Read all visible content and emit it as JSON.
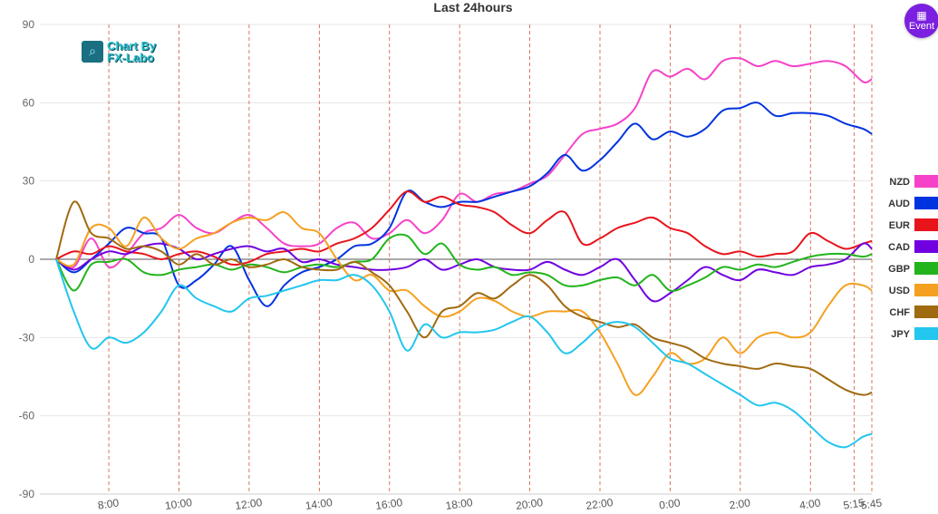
{
  "logo": {
    "line1": "Chart By",
    "line2": "FX-Labo",
    "icon": "chart-magnifier-icon"
  },
  "event_button": {
    "label": "Event",
    "icon": "calendar-icon",
    "color": "#7b1fe0"
  },
  "chart_data": {
    "type": "line",
    "title": "Last 24hours",
    "ylim": [
      -90,
      90
    ],
    "yticks": [
      90,
      60,
      30,
      0,
      -30,
      -60,
      -90
    ],
    "xlim": [
      6.5,
      29.75
    ],
    "xticks": [
      {
        "t": 8,
        "label": "8:00"
      },
      {
        "t": 10,
        "label": "10:00"
      },
      {
        "t": 12,
        "label": "12:00"
      },
      {
        "t": 14,
        "label": "14:00"
      },
      {
        "t": 16,
        "label": "16:00"
      },
      {
        "t": 18,
        "label": "18:00"
      },
      {
        "t": 20,
        "label": "20:00"
      },
      {
        "t": 22,
        "label": "22:00"
      },
      {
        "t": 24,
        "label": "0:00"
      },
      {
        "t": 26,
        "label": "2:00"
      },
      {
        "t": 28,
        "label": "4:00"
      },
      {
        "t": 29.25,
        "label": "5:15"
      },
      {
        "t": 29.75,
        "label": "5:45"
      }
    ],
    "grid": true,
    "legend": "right",
    "x": [
      6.5,
      7,
      7.5,
      8,
      8.5,
      9,
      9.5,
      10,
      10.5,
      11,
      11.5,
      12,
      12.5,
      13,
      13.5,
      14,
      14.5,
      15,
      15.5,
      16,
      16.5,
      17,
      17.5,
      18,
      18.5,
      19,
      19.5,
      20,
      20.5,
      21,
      21.5,
      22,
      22.5,
      23,
      23.5,
      24,
      24.5,
      25,
      25.5,
      26,
      26.5,
      27,
      27.5,
      28,
      28.5,
      29,
      29.5,
      29.75
    ],
    "series": [
      {
        "name": "NZD",
        "color": "#f542c8",
        "values": [
          0,
          -3,
          8,
          -3,
          2,
          10,
          12,
          17,
          12,
          10,
          14,
          17,
          12,
          6,
          5,
          6,
          12,
          14,
          8,
          10,
          15,
          10,
          15,
          25,
          22,
          25,
          26,
          29,
          32,
          40,
          48,
          50,
          52,
          58,
          72,
          70,
          73,
          69,
          76,
          77,
          74,
          76,
          74,
          75,
          76,
          74,
          68,
          69
        ]
      },
      {
        "name": "AUD",
        "color": "#0033e0",
        "values": [
          0,
          -5,
          0,
          6,
          12,
          10,
          8,
          -10,
          -8,
          -2,
          5,
          -8,
          -18,
          -10,
          -5,
          -3,
          0,
          5,
          6,
          12,
          26,
          22,
          20,
          22,
          22,
          24,
          26,
          28,
          33,
          40,
          34,
          38,
          45,
          52,
          46,
          49,
          47,
          50,
          57,
          58,
          60,
          55,
          56,
          56,
          55,
          52,
          50,
          48
        ]
      },
      {
        "name": "EUR",
        "color": "#e8141c",
        "values": [
          0,
          3,
          2,
          5,
          3,
          2,
          0,
          2,
          3,
          1,
          -2,
          -1,
          2,
          3,
          4,
          3,
          6,
          8,
          12,
          19,
          26,
          22,
          24,
          21,
          20,
          18,
          13,
          10,
          15,
          18,
          6,
          8,
          12,
          14,
          16,
          12,
          10,
          5,
          2,
          3,
          1,
          2,
          3,
          10,
          7,
          4,
          6,
          7
        ]
      },
      {
        "name": "CAD",
        "color": "#7000e0",
        "values": [
          0,
          -4,
          0,
          3,
          2,
          5,
          6,
          4,
          0,
          2,
          4,
          5,
          3,
          4,
          -1,
          0,
          -2,
          -3,
          -4,
          -4,
          -3,
          0,
          -4,
          -2,
          0,
          -3,
          -4,
          -4,
          -1,
          -4,
          -6,
          -3,
          0,
          -8,
          -16,
          -13,
          -8,
          -3,
          -6,
          -8,
          -4,
          -5,
          -6,
          -3,
          -2,
          0,
          6,
          4
        ]
      },
      {
        "name": "GBP",
        "color": "#22b41c",
        "values": [
          0,
          -12,
          -2,
          -1,
          0,
          -5,
          -6,
          -4,
          -3,
          -2,
          -4,
          -2,
          -3,
          -5,
          -3,
          -2,
          -3,
          -1,
          0,
          8,
          9,
          2,
          6,
          -2,
          -4,
          -3,
          -6,
          -5,
          -6,
          -10,
          -10,
          -8,
          -7,
          -10,
          -6,
          -12,
          -10,
          -7,
          -3,
          -4,
          -2,
          -3,
          -1,
          1,
          2,
          2,
          1,
          2
        ]
      },
      {
        "name": "USD",
        "color": "#f5a020",
        "values": [
          0,
          -2,
          12,
          12,
          5,
          16,
          8,
          4,
          8,
          10,
          14,
          16,
          15,
          18,
          12,
          10,
          0,
          -8,
          -6,
          -12,
          -12,
          -18,
          -22,
          -20,
          -15,
          -16,
          -20,
          -22,
          -20,
          -20,
          -20,
          -28,
          -40,
          -52,
          -45,
          -36,
          -40,
          -38,
          -30,
          -36,
          -30,
          -28,
          -30,
          -28,
          -18,
          -10,
          -10,
          -12
        ]
      },
      {
        "name": "CHF",
        "color": "#a06a10",
        "values": [
          0,
          22,
          10,
          8,
          4,
          5,
          3,
          -2,
          2,
          -2,
          0,
          -3,
          -2,
          0,
          -3,
          -4,
          -4,
          -1,
          -5,
          -10,
          -20,
          -30,
          -20,
          -18,
          -13,
          -15,
          -10,
          -6,
          -10,
          -18,
          -22,
          -24,
          -26,
          -25,
          -30,
          -32,
          -34,
          -38,
          -40,
          -41,
          -42,
          -40,
          -41,
          -42,
          -46,
          -50,
          -52,
          -51
        ]
      },
      {
        "name": "JPY",
        "color": "#22c6ee",
        "values": [
          0,
          -20,
          -34,
          -30,
          -32,
          -28,
          -20,
          -10,
          -15,
          -18,
          -20,
          -15,
          -14,
          -12,
          -10,
          -8,
          -8,
          -6,
          -10,
          -20,
          -35,
          -25,
          -30,
          -28,
          -28,
          -27,
          -24,
          -22,
          -28,
          -36,
          -32,
          -26,
          -24,
          -26,
          -32,
          -38,
          -40,
          -44,
          -48,
          -52,
          -56,
          -55,
          -58,
          -64,
          -70,
          -72,
          -68,
          -67
        ]
      }
    ]
  }
}
